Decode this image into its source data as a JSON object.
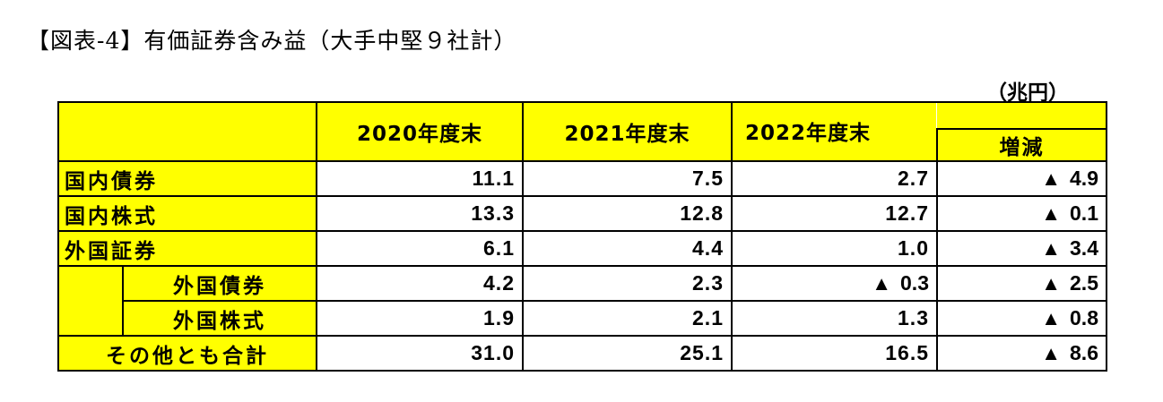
{
  "title": "【図表-4】有価証券含み益（大手中堅９社計）",
  "unit": "（兆円）",
  "chart_data": {
    "type": "table",
    "columns": [
      "2020年度末",
      "2021年度末",
      "2022年度末",
      "増減"
    ],
    "change_prefix": "▲",
    "rows": [
      {
        "label": "国内債券",
        "values": [
          "11.1",
          "7.5",
          "2.7"
        ],
        "change": "4.9"
      },
      {
        "label": "国内株式",
        "values": [
          "13.3",
          "12.8",
          "12.7"
        ],
        "change": "0.1"
      },
      {
        "label": "外国証券",
        "values": [
          "6.1",
          "4.4",
          "1.0"
        ],
        "change": "3.4"
      },
      {
        "label": "外国債券",
        "values": [
          "4.2",
          "2.3",
          "0.3"
        ],
        "value_2022_prefix": "▲",
        "change": "2.5",
        "sub_row": true
      },
      {
        "label": "外国株式",
        "values": [
          "1.9",
          "2.1",
          "1.3"
        ],
        "change": "0.8",
        "sub_row": true
      },
      {
        "label": "その他とも合計",
        "values": [
          "31.0",
          "25.1",
          "16.5"
        ],
        "change": "8.6"
      }
    ]
  },
  "colors": {
    "header_fill": "#ffff00",
    "grid_line": "#000000",
    "background": "#ffffff"
  }
}
